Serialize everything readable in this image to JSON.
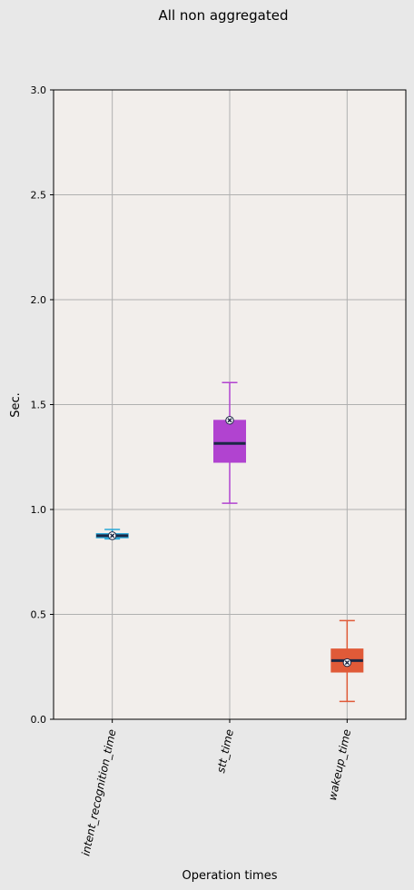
{
  "chart_data": {
    "type": "box",
    "title": "All non aggregated",
    "xlabel": "Operation times",
    "ylabel": "Sec.",
    "ylim": [
      0,
      3
    ],
    "yticks": [
      0.0,
      0.5,
      1.0,
      1.5,
      2.0,
      2.5,
      3.0
    ],
    "ytick_labels": [
      "0.0",
      "0.5",
      "1.0",
      "1.5",
      "2.0",
      "2.5",
      "3.0"
    ],
    "grid": true,
    "categories": [
      "intent_recognition_time",
      "stt_time",
      "wakeup_time"
    ],
    "boxes": [
      {
        "category": "intent_recognition_time",
        "whisker_low": 0.86,
        "q1": 0.865,
        "median": 0.875,
        "q3": 0.885,
        "whisker_high": 0.905,
        "mean": 0.875,
        "color": "#29a8d8"
      },
      {
        "category": "stt_time",
        "whisker_low": 1.03,
        "q1": 1.225,
        "median": 1.315,
        "q3": 1.425,
        "whisker_high": 1.605,
        "mean": 1.425,
        "color": "#b143d0"
      },
      {
        "category": "wakeup_time",
        "whisker_low": 0.085,
        "q1": 0.225,
        "median": 0.28,
        "q3": 0.335,
        "whisker_high": 0.47,
        "mean": 0.27,
        "color": "#e05a38"
      }
    ],
    "median_color": "#1b2744",
    "plot_background": "#f2eeeb",
    "figure_background": "#e8e8e8"
  }
}
